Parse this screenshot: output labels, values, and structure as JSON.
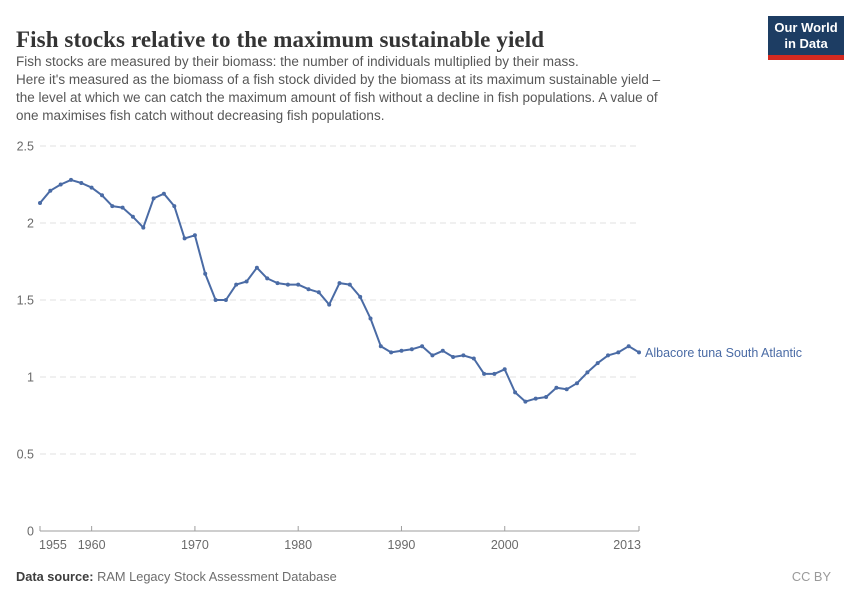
{
  "header": {
    "title": "Fish stocks relative to the maximum sustainable yield",
    "subtitle_lines": [
      "Fish stocks are measured by their biomass: the number of individuals multiplied by their mass.",
      "Here it's measured as the biomass of a fish stock divided by the biomass at its maximum sustainable yield –",
      "the level at which we can catch the maximum amount of fish without a decline in fish populations. A value of",
      "one maximises fish catch without decreasing fish populations."
    ],
    "logo": {
      "line1": "Our World",
      "line2": "in Data",
      "bg_color": "#1d3d63",
      "stripe_color": "#d42a20"
    }
  },
  "footer": {
    "source_label": "Data source:",
    "source_value": " RAM Legacy Stock Assessment Database",
    "license": "CC BY"
  },
  "chart_data": {
    "type": "line",
    "title": "Fish stocks relative to the maximum sustainable yield",
    "xlabel": "",
    "ylabel": "",
    "x_ticks": [
      1955,
      1960,
      1970,
      1980,
      1990,
      2000,
      2013
    ],
    "y_ticks": [
      0,
      0.5,
      1,
      1.5,
      2,
      2.5
    ],
    "xlim": [
      1955,
      2013
    ],
    "ylim": [
      0,
      2.5
    ],
    "grid": "horizontal-dashed",
    "legend": "inline-end-label",
    "series": [
      {
        "name": "Albacore tuna South Atlantic",
        "color": "#4a6ba5",
        "years": [
          1955,
          1956,
          1957,
          1958,
          1959,
          1960,
          1961,
          1962,
          1963,
          1964,
          1965,
          1966,
          1967,
          1968,
          1969,
          1970,
          1971,
          1972,
          1973,
          1974,
          1975,
          1976,
          1977,
          1978,
          1979,
          1980,
          1981,
          1982,
          1983,
          1984,
          1985,
          1986,
          1987,
          1988,
          1989,
          1990,
          1991,
          1992,
          1993,
          1994,
          1995,
          1996,
          1997,
          1998,
          1999,
          2000,
          2001,
          2002,
          2003,
          2004,
          2005,
          2006,
          2007,
          2008,
          2009,
          2010,
          2011,
          2012,
          2013
        ],
        "values": [
          2.13,
          2.21,
          2.25,
          2.28,
          2.26,
          2.23,
          2.18,
          2.11,
          2.1,
          2.04,
          1.97,
          2.16,
          2.19,
          2.11,
          1.9,
          1.92,
          1.67,
          1.5,
          1.5,
          1.6,
          1.62,
          1.71,
          1.64,
          1.61,
          1.6,
          1.6,
          1.57,
          1.55,
          1.47,
          1.61,
          1.6,
          1.52,
          1.38,
          1.2,
          1.16,
          1.17,
          1.18,
          1.2,
          1.14,
          1.17,
          1.13,
          1.14,
          1.12,
          1.02,
          1.02,
          1.05,
          0.9,
          0.84,
          0.86,
          0.87,
          0.93,
          0.92,
          0.96,
          1.03,
          1.09,
          1.14,
          1.16,
          1.2,
          1.16
        ]
      }
    ]
  }
}
